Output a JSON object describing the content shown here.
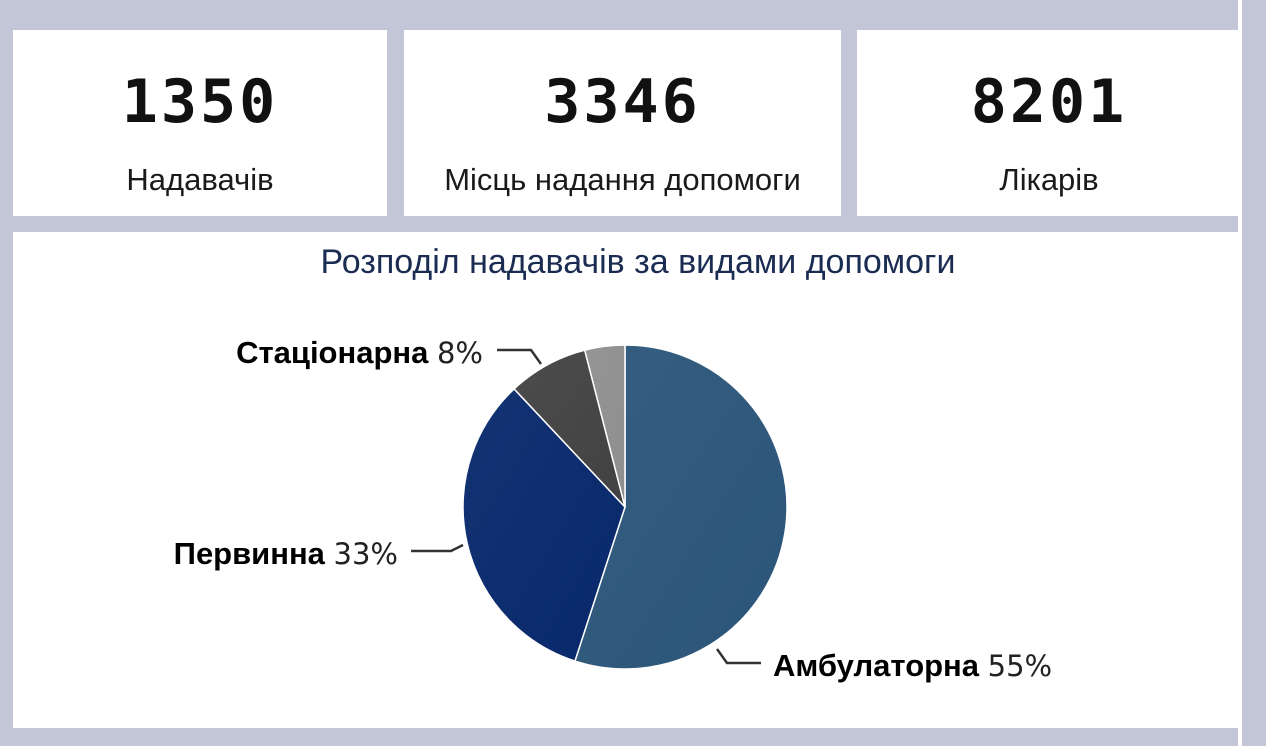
{
  "stats": [
    {
      "value": "1350",
      "label": "Надавачів"
    },
    {
      "value": "3346",
      "label": "Місць надання допомоги"
    },
    {
      "value": "8201",
      "label": "Лікарів"
    }
  ],
  "chart_data": {
    "type": "pie",
    "title": "Розподіл надавачів за видами допомоги",
    "slices": [
      {
        "label": "Амбулаторна",
        "pct_label": "55%",
        "value": 55,
        "color": "#2b5579"
      },
      {
        "label": "Первинна",
        "pct_label": "33%",
        "value": 33,
        "color": "#07286b"
      },
      {
        "label": "Стаціонарна",
        "pct_label": "8%",
        "value": 8,
        "color": "#424242"
      },
      {
        "label": "",
        "pct_label": "",
        "value": 4,
        "color": "#8f8f8f"
      }
    ]
  }
}
